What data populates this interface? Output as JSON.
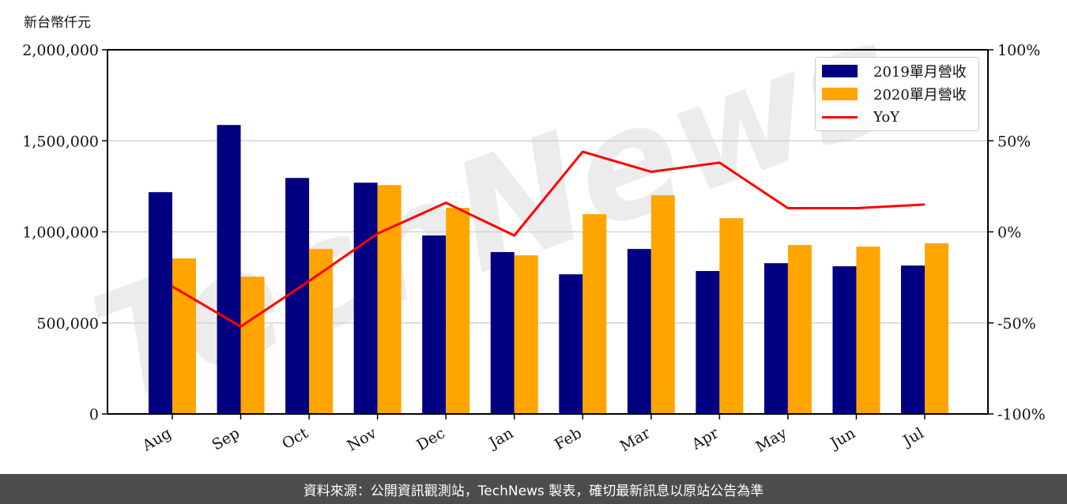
{
  "chart_data": {
    "type": "bar",
    "categories": [
      "Aug",
      "Sep",
      "Oct",
      "Nov",
      "Dec",
      "Jan",
      "Feb",
      "Mar",
      "Apr",
      "May",
      "Jun",
      "Jul"
    ],
    "series": [
      {
        "name": "2019單月營收",
        "type": "bar",
        "axis": "left",
        "color": "#000080",
        "values": [
          1218000,
          1587000,
          1296000,
          1270000,
          980000,
          889000,
          767000,
          906000,
          785000,
          828000,
          811000,
          815000
        ]
      },
      {
        "name": "2020單月營收",
        "type": "bar",
        "axis": "left",
        "color": "#ffa500",
        "values": [
          854000,
          754000,
          906000,
          1257000,
          1132000,
          871000,
          1097000,
          1201000,
          1075000,
          928000,
          919000,
          937000
        ]
      },
      {
        "name": "YoY",
        "type": "line",
        "axis": "right",
        "color": "#ff0000",
        "values": [
          -30,
          -52,
          -27,
          -1,
          16,
          -2,
          44,
          33,
          38,
          13,
          13,
          15
        ]
      }
    ],
    "title": "",
    "ylabel": "新台幣仟元",
    "y2label": "",
    "xlabel": "",
    "ylim": [
      0,
      2000000
    ],
    "y2lim": [
      -100,
      100
    ],
    "yticks": [
      "0",
      "500,000",
      "1,000,000",
      "1,500,000",
      "2,000,000"
    ],
    "y2ticks": [
      "-100%",
      "-50%",
      "0%",
      "50%",
      "100%"
    ],
    "grid": true,
    "legend_position": "upper right",
    "watermark": "TechNews"
  },
  "unit_label": "新台幣仟元",
  "legend": {
    "items": [
      {
        "label": "2019單月營收",
        "color": "#000080",
        "kind": "bar"
      },
      {
        "label": "2020單月營收",
        "color": "#ffa500",
        "kind": "bar"
      },
      {
        "label": "YoY",
        "color": "#ff0000",
        "kind": "line"
      }
    ]
  },
  "footer": {
    "text": "資料來源：公開資訊觀測站，TechNews 製表，確切最新訊息以原站公告為準"
  }
}
